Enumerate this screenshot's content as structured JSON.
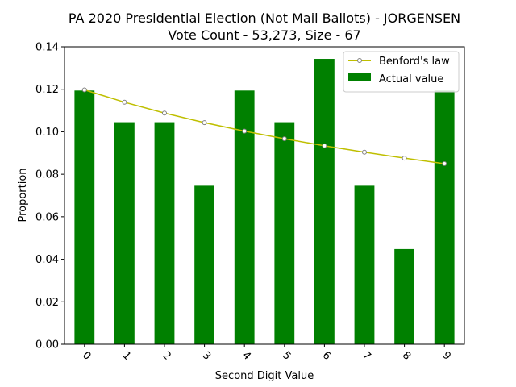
{
  "chart_data": {
    "type": "bar",
    "title_line1": "PA 2020 Presidential Election (Not Mail Ballots) - JORGENSEN",
    "title_line2": "Vote Count - 53,273, Size - 67",
    "xlabel": "Second Digit Value",
    "ylabel": "Proportion",
    "categories": [
      "0",
      "1",
      "2",
      "3",
      "4",
      "5",
      "6",
      "7",
      "8",
      "9"
    ],
    "ylim": [
      0,
      0.14
    ],
    "yticks": [
      0.0,
      0.02,
      0.04,
      0.06,
      0.08,
      0.1,
      0.12,
      0.14
    ],
    "ytick_labels": [
      "0.00",
      "0.02",
      "0.04",
      "0.06",
      "0.08",
      "0.10",
      "0.12",
      "0.14"
    ],
    "series": [
      {
        "name": "Benford's law",
        "kind": "line",
        "color": "#bfbf00",
        "values": [
          0.1197,
          0.1139,
          0.1088,
          0.1043,
          0.1003,
          0.0967,
          0.0934,
          0.0904,
          0.0876,
          0.085
        ]
      },
      {
        "name": "Actual value",
        "kind": "bar",
        "color": "#008000",
        "values": [
          0.1194,
          0.1045,
          0.1045,
          0.0746,
          0.1194,
          0.1045,
          0.1343,
          0.0746,
          0.0448,
          0.1194
        ]
      }
    ],
    "grid": false,
    "legend_position": "top-right"
  }
}
